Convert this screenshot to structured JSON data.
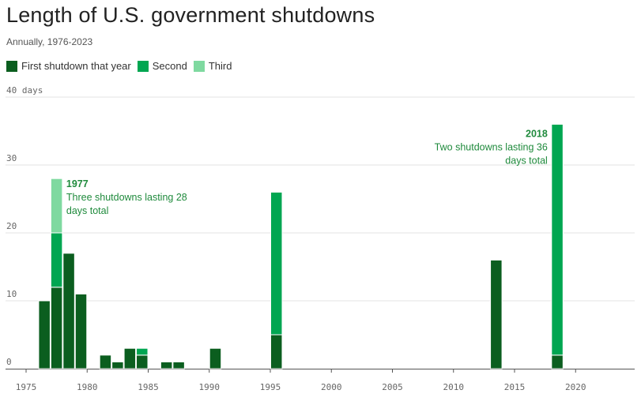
{
  "title": "Length of U.S. government shutdowns",
  "subtitle": "Annually, 1976-2023",
  "legend": [
    {
      "label": "First shutdown that year",
      "color": "#0b5e1f"
    },
    {
      "label": "Second",
      "color": "#00a651"
    },
    {
      "label": "Third",
      "color": "#7fd9a0"
    }
  ],
  "chart_data": {
    "type": "bar",
    "stacked": true,
    "title": "Length of U.S. government shutdowns",
    "subtitle": "Annually, 1976-2023",
    "xlim": [
      1976,
      2023
    ],
    "ylim": [
      0,
      40
    ],
    "x_ticks": [
      1975,
      1980,
      1985,
      1990,
      1995,
      2000,
      2005,
      2010,
      2015,
      2020
    ],
    "y_ticks": [
      0,
      10,
      20,
      30,
      40
    ],
    "y_tick_labels": [
      "0",
      "10",
      "20",
      "30",
      "40 days"
    ],
    "grid": true,
    "legend_position": "top-left",
    "categories": [
      1976,
      1977,
      1978,
      1979,
      1981,
      1982,
      1983,
      1984,
      1986,
      1987,
      1990,
      1995,
      2013,
      2018
    ],
    "series": [
      {
        "name": "First shutdown that year",
        "color": "#0b5e1f",
        "values": [
          10,
          12,
          17,
          11,
          2,
          1,
          3,
          2,
          1,
          1,
          3,
          5,
          16,
          2
        ]
      },
      {
        "name": "Second",
        "color": "#00a651",
        "values": [
          0,
          8,
          0,
          0,
          0,
          0,
          0,
          1,
          0,
          0,
          0,
          21,
          0,
          34
        ]
      },
      {
        "name": "Third",
        "color": "#7fd9a0",
        "values": [
          0,
          8,
          0,
          0,
          0,
          0,
          0,
          0,
          0,
          0,
          0,
          0,
          0,
          0
        ]
      }
    ],
    "annotations": [
      {
        "year": "1977",
        "text": [
          "Three shutdowns lasting 28",
          "days total"
        ],
        "x": 1977,
        "align": "left"
      },
      {
        "year": "2018",
        "text": [
          "Two shutdowns lasting 36",
          "days total"
        ],
        "x": 2018,
        "align": "right"
      }
    ]
  }
}
